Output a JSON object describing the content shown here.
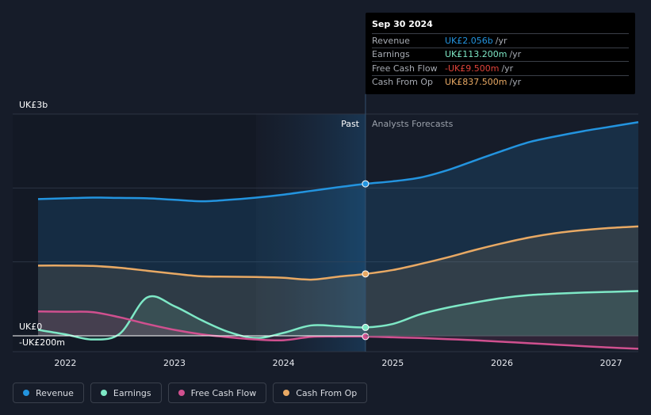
{
  "chart_data": {
    "type": "area",
    "title": "",
    "y_axis": {
      "top_label": "UK£3b",
      "zero_label": "UK£0",
      "min_label": "-UK£200m",
      "ylim": [
        -200,
        3000
      ]
    },
    "x_axis": {
      "tick_labels": [
        "2022",
        "2023",
        "2024",
        "2025",
        "2026",
        "2027"
      ],
      "xlim": [
        2021.75,
        2027.25
      ]
    },
    "divider": {
      "x": 2024.75,
      "past_label": "Past",
      "forecast_label": "Analysts Forecasts"
    },
    "series": [
      {
        "name": "Revenue",
        "color": "#2394df",
        "points": [
          [
            2021.75,
            1850
          ],
          [
            2022.0,
            1860
          ],
          [
            2022.25,
            1870
          ],
          [
            2022.5,
            1865
          ],
          [
            2022.75,
            1860
          ],
          [
            2023.0,
            1840
          ],
          [
            2023.25,
            1820
          ],
          [
            2023.5,
            1840
          ],
          [
            2023.75,
            1870
          ],
          [
            2024.0,
            1910
          ],
          [
            2024.25,
            1960
          ],
          [
            2024.5,
            2010
          ],
          [
            2024.75,
            2056
          ],
          [
            2025.0,
            2090
          ],
          [
            2025.25,
            2140
          ],
          [
            2025.5,
            2240
          ],
          [
            2025.75,
            2370
          ],
          [
            2026.0,
            2500
          ],
          [
            2026.25,
            2620
          ],
          [
            2026.5,
            2700
          ],
          [
            2026.75,
            2770
          ],
          [
            2027.0,
            2830
          ],
          [
            2027.25,
            2890
          ]
        ]
      },
      {
        "name": "Earnings",
        "color": "#7ee8c6",
        "points": [
          [
            2021.75,
            80
          ],
          [
            2022.0,
            20
          ],
          [
            2022.25,
            -50
          ],
          [
            2022.5,
            30
          ],
          [
            2022.75,
            520
          ],
          [
            2023.0,
            400
          ],
          [
            2023.25,
            210
          ],
          [
            2023.5,
            50
          ],
          [
            2023.75,
            -30
          ],
          [
            2024.0,
            40
          ],
          [
            2024.25,
            140
          ],
          [
            2024.5,
            130
          ],
          [
            2024.75,
            113.2
          ],
          [
            2025.0,
            160
          ],
          [
            2025.25,
            290
          ],
          [
            2025.5,
            380
          ],
          [
            2025.75,
            450
          ],
          [
            2026.0,
            510
          ],
          [
            2026.25,
            550
          ],
          [
            2026.5,
            570
          ],
          [
            2026.75,
            585
          ],
          [
            2027.0,
            595
          ],
          [
            2027.25,
            605
          ]
        ]
      },
      {
        "name": "Free Cash Flow",
        "color": "#d0508f",
        "points": [
          [
            2021.75,
            330
          ],
          [
            2022.0,
            325
          ],
          [
            2022.25,
            320
          ],
          [
            2022.5,
            250
          ],
          [
            2022.75,
            160
          ],
          [
            2023.0,
            80
          ],
          [
            2023.25,
            20
          ],
          [
            2023.5,
            -20
          ],
          [
            2023.75,
            -50
          ],
          [
            2024.0,
            -60
          ],
          [
            2024.25,
            -15
          ],
          [
            2024.5,
            -10
          ],
          [
            2024.75,
            -9.5
          ],
          [
            2025.0,
            -20
          ],
          [
            2025.25,
            -30
          ],
          [
            2025.5,
            -45
          ],
          [
            2025.75,
            -60
          ],
          [
            2026.0,
            -80
          ],
          [
            2026.25,
            -100
          ],
          [
            2026.5,
            -120
          ],
          [
            2026.75,
            -140
          ],
          [
            2027.0,
            -160
          ],
          [
            2027.25,
            -175
          ]
        ]
      },
      {
        "name": "Cash From Op",
        "color": "#e8a964",
        "points": [
          [
            2021.75,
            950
          ],
          [
            2022.0,
            950
          ],
          [
            2022.25,
            945
          ],
          [
            2022.5,
            920
          ],
          [
            2022.75,
            880
          ],
          [
            2023.0,
            840
          ],
          [
            2023.25,
            805
          ],
          [
            2023.5,
            800
          ],
          [
            2023.75,
            795
          ],
          [
            2024.0,
            785
          ],
          [
            2024.25,
            760
          ],
          [
            2024.5,
            800
          ],
          [
            2024.75,
            837.5
          ],
          [
            2025.0,
            890
          ],
          [
            2025.25,
            970
          ],
          [
            2025.5,
            1060
          ],
          [
            2025.75,
            1160
          ],
          [
            2026.0,
            1250
          ],
          [
            2026.25,
            1330
          ],
          [
            2026.5,
            1390
          ],
          [
            2026.75,
            1430
          ],
          [
            2027.0,
            1460
          ],
          [
            2027.25,
            1480
          ]
        ]
      }
    ]
  },
  "tooltip": {
    "date": "Sep 30 2024",
    "rows": [
      {
        "label": "Revenue",
        "value": "UK£2.056b",
        "unit": "/yr",
        "color": "#2394df"
      },
      {
        "label": "Earnings",
        "value": "UK£113.200m",
        "unit": "/yr",
        "color": "#7ee8c6"
      },
      {
        "label": "Free Cash Flow",
        "value": "-UK£9.500m",
        "unit": "/yr",
        "color": "#e0433a"
      },
      {
        "label": "Cash From Op",
        "value": "UK£837.500m",
        "unit": "/yr",
        "color": "#e8a964"
      }
    ]
  },
  "legend": {
    "items": [
      {
        "label": "Revenue",
        "color": "#2394df"
      },
      {
        "label": "Earnings",
        "color": "#7ee8c6"
      },
      {
        "label": "Free Cash Flow",
        "color": "#d0508f"
      },
      {
        "label": "Cash From Op",
        "color": "#e8a964"
      }
    ]
  }
}
